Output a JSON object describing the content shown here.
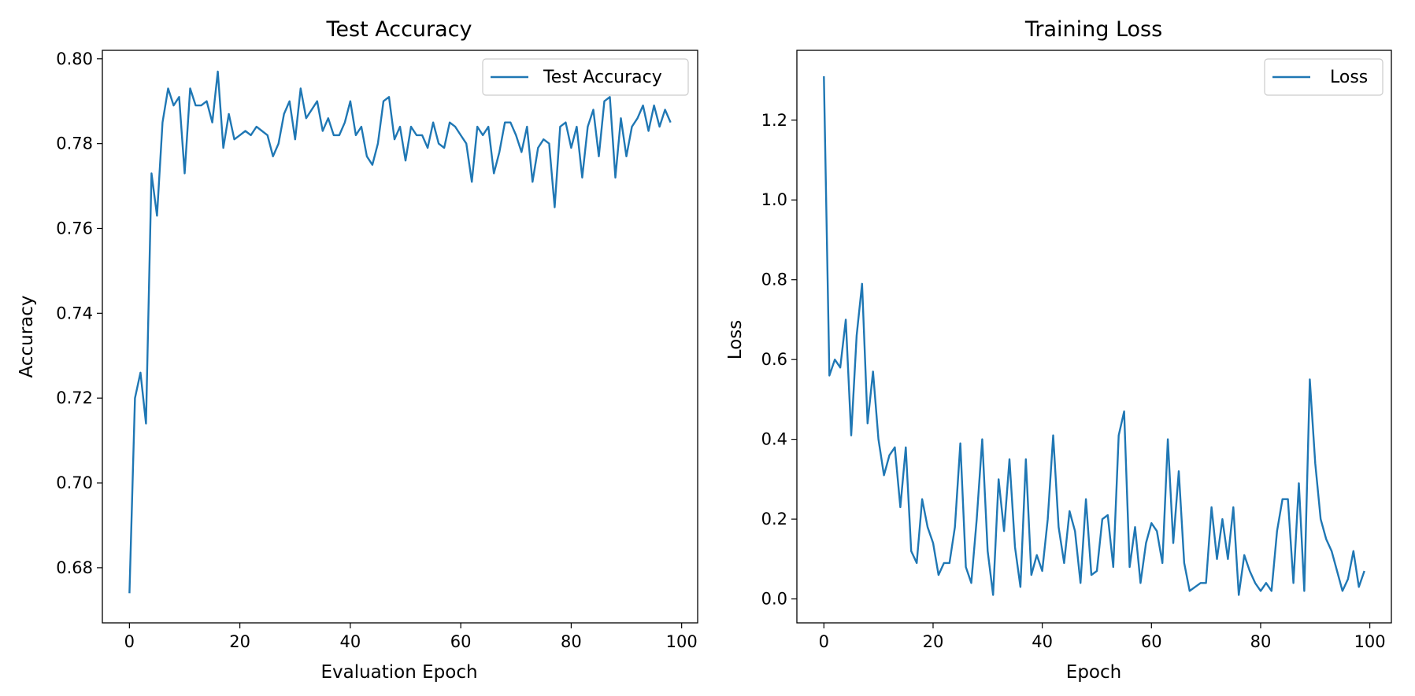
{
  "figure": {
    "background": "#ffffff"
  },
  "chart_data": [
    {
      "type": "line",
      "title": "Test Accuracy",
      "xlabel": "Evaluation Epoch",
      "ylabel": "Accuracy",
      "xlim": [
        -4.9,
        102.9
      ],
      "ylim": [
        0.667,
        0.802
      ],
      "xticks": [
        0,
        20,
        40,
        60,
        80,
        100
      ],
      "yticks": [
        0.68,
        0.7,
        0.72,
        0.74,
        0.76,
        0.78,
        0.8
      ],
      "ytick_labels": [
        "0.68",
        "0.70",
        "0.72",
        "0.74",
        "0.76",
        "0.78",
        "0.80"
      ],
      "xtick_labels": [
        "0",
        "20",
        "40",
        "60",
        "80",
        "100"
      ],
      "legend_position": "top-right",
      "grid": false,
      "series": [
        {
          "name": "Test Accuracy",
          "color": "#1f77b4",
          "x": [
            0,
            1,
            2,
            3,
            4,
            5,
            6,
            7,
            8,
            9,
            10,
            11,
            12,
            13,
            14,
            15,
            16,
            17,
            18,
            19,
            20,
            21,
            22,
            23,
            24,
            25,
            26,
            27,
            28,
            29,
            30,
            31,
            32,
            33,
            34,
            35,
            36,
            37,
            38,
            39,
            40,
            41,
            42,
            43,
            44,
            45,
            46,
            47,
            48,
            49,
            50,
            51,
            52,
            53,
            54,
            55,
            56,
            57,
            58,
            59,
            60,
            61,
            62,
            63,
            64,
            65,
            66,
            67,
            68,
            69,
            70,
            71,
            72,
            73,
            74,
            75,
            76,
            77,
            78,
            79,
            80,
            81,
            82,
            83,
            84,
            85,
            86,
            87,
            88,
            89,
            90,
            91,
            92,
            93,
            94,
            95,
            96,
            97,
            98
          ],
          "values": [
            0.674,
            0.72,
            0.726,
            0.714,
            0.773,
            0.763,
            0.785,
            0.793,
            0.789,
            0.791,
            0.773,
            0.793,
            0.789,
            0.789,
            0.79,
            0.785,
            0.797,
            0.779,
            0.787,
            0.781,
            0.782,
            0.783,
            0.782,
            0.784,
            0.783,
            0.782,
            0.777,
            0.78,
            0.787,
            0.79,
            0.781,
            0.793,
            0.786,
            0.788,
            0.79,
            0.783,
            0.786,
            0.782,
            0.782,
            0.785,
            0.79,
            0.782,
            0.784,
            0.777,
            0.775,
            0.78,
            0.79,
            0.791,
            0.781,
            0.784,
            0.776,
            0.784,
            0.782,
            0.782,
            0.779,
            0.785,
            0.78,
            0.779,
            0.785,
            0.784,
            0.782,
            0.78,
            0.771,
            0.784,
            0.782,
            0.784,
            0.773,
            0.778,
            0.785,
            0.785,
            0.782,
            0.778,
            0.784,
            0.771,
            0.779,
            0.781,
            0.78,
            0.765,
            0.784,
            0.785,
            0.779,
            0.784,
            0.772,
            0.784,
            0.788,
            0.777,
            0.79,
            0.791,
            0.772,
            0.786,
            0.777,
            0.784,
            0.786,
            0.789,
            0.783,
            0.789,
            0.784,
            0.788,
            0.785
          ]
        }
      ]
    },
    {
      "type": "line",
      "title": "Training Loss",
      "xlabel": "Epoch",
      "ylabel": "Loss",
      "xlim": [
        -4.95,
        103.95
      ],
      "ylim": [
        -0.06,
        1.375
      ],
      "xticks": [
        0,
        20,
        40,
        60,
        80,
        100
      ],
      "yticks": [
        0.0,
        0.2,
        0.4,
        0.6,
        0.8,
        1.0,
        1.2
      ],
      "ytick_labels": [
        "0.0",
        "0.2",
        "0.4",
        "0.6",
        "0.8",
        "1.0",
        "1.2"
      ],
      "xtick_labels": [
        "0",
        "20",
        "40",
        "60",
        "80",
        "100"
      ],
      "legend_position": "top-right",
      "grid": false,
      "series": [
        {
          "name": "Loss",
          "color": "#1f77b4",
          "x": [
            0,
            1,
            2,
            3,
            4,
            5,
            6,
            7,
            8,
            9,
            10,
            11,
            12,
            13,
            14,
            15,
            16,
            17,
            18,
            19,
            20,
            21,
            22,
            23,
            24,
            25,
            26,
            27,
            28,
            29,
            30,
            31,
            32,
            33,
            34,
            35,
            36,
            37,
            38,
            39,
            40,
            41,
            42,
            43,
            44,
            45,
            46,
            47,
            48,
            49,
            50,
            51,
            52,
            53,
            54,
            55,
            56,
            57,
            58,
            59,
            60,
            61,
            62,
            63,
            64,
            65,
            66,
            67,
            68,
            69,
            70,
            71,
            72,
            73,
            74,
            75,
            76,
            77,
            78,
            79,
            80,
            81,
            82,
            83,
            84,
            85,
            86,
            87,
            88,
            89,
            90,
            91,
            92,
            93,
            94,
            95,
            96,
            97,
            98,
            99
          ],
          "values": [
            1.31,
            0.56,
            0.6,
            0.58,
            0.7,
            0.41,
            0.66,
            0.79,
            0.44,
            0.57,
            0.4,
            0.31,
            0.36,
            0.38,
            0.23,
            0.38,
            0.12,
            0.09,
            0.25,
            0.18,
            0.14,
            0.06,
            0.09,
            0.09,
            0.18,
            0.39,
            0.08,
            0.04,
            0.2,
            0.4,
            0.12,
            0.01,
            0.3,
            0.17,
            0.35,
            0.13,
            0.03,
            0.35,
            0.06,
            0.11,
            0.07,
            0.2,
            0.41,
            0.18,
            0.09,
            0.22,
            0.17,
            0.04,
            0.25,
            0.06,
            0.07,
            0.2,
            0.21,
            0.08,
            0.41,
            0.47,
            0.08,
            0.18,
            0.04,
            0.14,
            0.19,
            0.17,
            0.09,
            0.4,
            0.14,
            0.32,
            0.09,
            0.02,
            0.03,
            0.04,
            0.04,
            0.23,
            0.1,
            0.2,
            0.1,
            0.23,
            0.01,
            0.11,
            0.07,
            0.04,
            0.02,
            0.04,
            0.02,
            0.17,
            0.25,
            0.25,
            0.04,
            0.29,
            0.02,
            0.55,
            0.34,
            0.2,
            0.15,
            0.12,
            0.07,
            0.02,
            0.05,
            0.12,
            0.03,
            0.07
          ]
        }
      ]
    }
  ]
}
